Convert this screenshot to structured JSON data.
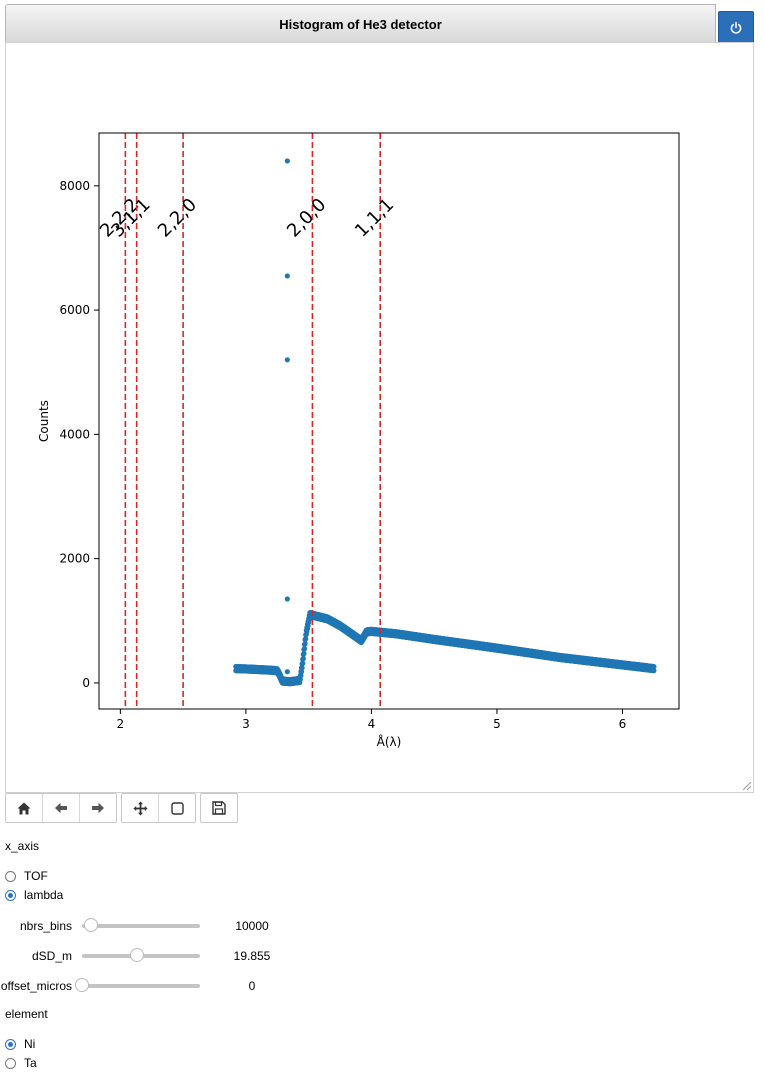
{
  "title_bar": {
    "title": "Histogram of He3 detector",
    "power_icon": "power-icon"
  },
  "toolbar": {
    "icons": [
      "home-icon",
      "back-arrow-icon",
      "forward-arrow-icon",
      "pan-move-icon",
      "zoom-rectangle-icon",
      "save-disk-icon"
    ]
  },
  "chart_data": {
    "type": "scatter",
    "xlabel": "Å(λ)",
    "ylabel": "Counts",
    "xlim": [
      1.83,
      6.45
    ],
    "ylim": [
      -420,
      8850
    ],
    "xticks": [
      2,
      3,
      4,
      5,
      6
    ],
    "yticks": [
      0,
      2000,
      4000,
      6000,
      8000
    ],
    "point_color": "#1f77b4",
    "vline_color": "#d62728",
    "outlier_points": [
      {
        "x": 3.33,
        "y": 8400
      },
      {
        "x": 3.33,
        "y": 6550
      },
      {
        "x": 3.33,
        "y": 5200
      },
      {
        "x": 3.33,
        "y": 1350
      },
      {
        "x": 3.33,
        "y": 180
      }
    ],
    "profile": [
      {
        "x": 2.92,
        "y": 230
      },
      {
        "x": 3.0,
        "y": 225
      },
      {
        "x": 3.1,
        "y": 215
      },
      {
        "x": 3.2,
        "y": 205
      },
      {
        "x": 3.25,
        "y": 195
      },
      {
        "x": 3.27,
        "y": 120
      },
      {
        "x": 3.29,
        "y": 30
      },
      {
        "x": 3.35,
        "y": 20
      },
      {
        "x": 3.43,
        "y": 40
      },
      {
        "x": 3.45,
        "y": 300
      },
      {
        "x": 3.48,
        "y": 800
      },
      {
        "x": 3.51,
        "y": 1100
      },
      {
        "x": 3.55,
        "y": 1080
      },
      {
        "x": 3.65,
        "y": 1030
      },
      {
        "x": 3.75,
        "y": 920
      },
      {
        "x": 3.85,
        "y": 780
      },
      {
        "x": 3.92,
        "y": 680
      },
      {
        "x": 3.96,
        "y": 820
      },
      {
        "x": 4.0,
        "y": 830
      },
      {
        "x": 4.2,
        "y": 790
      },
      {
        "x": 4.5,
        "y": 700
      },
      {
        "x": 5.0,
        "y": 560
      },
      {
        "x": 5.5,
        "y": 410
      },
      {
        "x": 6.0,
        "y": 290
      },
      {
        "x": 6.25,
        "y": 230
      }
    ],
    "reflections": [
      {
        "label": "2,2,2",
        "x": 2.04
      },
      {
        "label": "3,1,1",
        "x": 2.13
      },
      {
        "label": "2,2,0",
        "x": 2.5
      },
      {
        "label": "2,0,0",
        "x": 3.53
      },
      {
        "label": "1,1,1",
        "x": 4.07
      }
    ]
  },
  "controls": {
    "x_axis_label": "x_axis",
    "x_axis_options": [
      {
        "label": "TOF",
        "selected": false
      },
      {
        "label": "lambda",
        "selected": true
      }
    ],
    "sliders": [
      {
        "label": "nbrs_bins",
        "value": "10000",
        "position": 0.08
      },
      {
        "label": "dSD_m",
        "value": "19.855",
        "position": 0.47
      },
      {
        "label": "offset_micros",
        "value": "0",
        "position": 0.0
      }
    ],
    "element_label": "element",
    "element_options": [
      {
        "label": "Ni",
        "selected": true
      },
      {
        "label": "Ta",
        "selected": false
      }
    ]
  }
}
